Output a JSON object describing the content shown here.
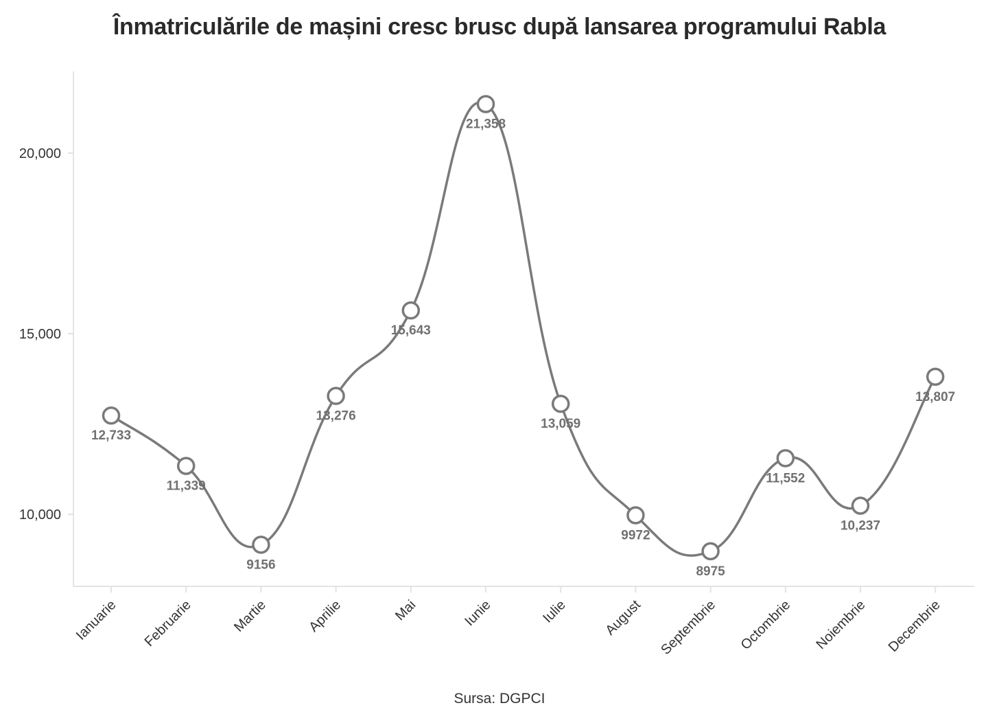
{
  "chart_data": {
    "type": "line",
    "title": "Înmatriculările de mașini cresc brusc după lansarea programului Rabla",
    "xlabel": "",
    "ylabel": "",
    "source": "Sursa: DGPCI",
    "categories": [
      "Ianuarie",
      "Februarie",
      "Martie",
      "Aprilie",
      "Mai",
      "Iunie",
      "Iulie",
      "August",
      "Septembrie",
      "Octombrie",
      "Noiembrie",
      "Decembrie"
    ],
    "series": [
      {
        "values": [
          12733,
          11339,
          9156,
          13276,
          15643,
          21358,
          13059,
          9972,
          8975,
          11552,
          10237,
          13807
        ],
        "labels": [
          "12,733",
          "11,339",
          "9156",
          "13,276",
          "15,643",
          "21,358",
          "13,059",
          "9972",
          "8975",
          "11,552",
          "10,237",
          "13,807"
        ]
      }
    ],
    "yticks": [
      10000,
      15000,
      20000
    ],
    "ytick_labels": [
      "10,000",
      "15,000",
      "20,000"
    ],
    "ylim": [
      8000,
      22200
    ],
    "grid": false,
    "line_color": "#7a7a7a",
    "marker_fill": "#ffffff",
    "label_color": "#707070"
  }
}
